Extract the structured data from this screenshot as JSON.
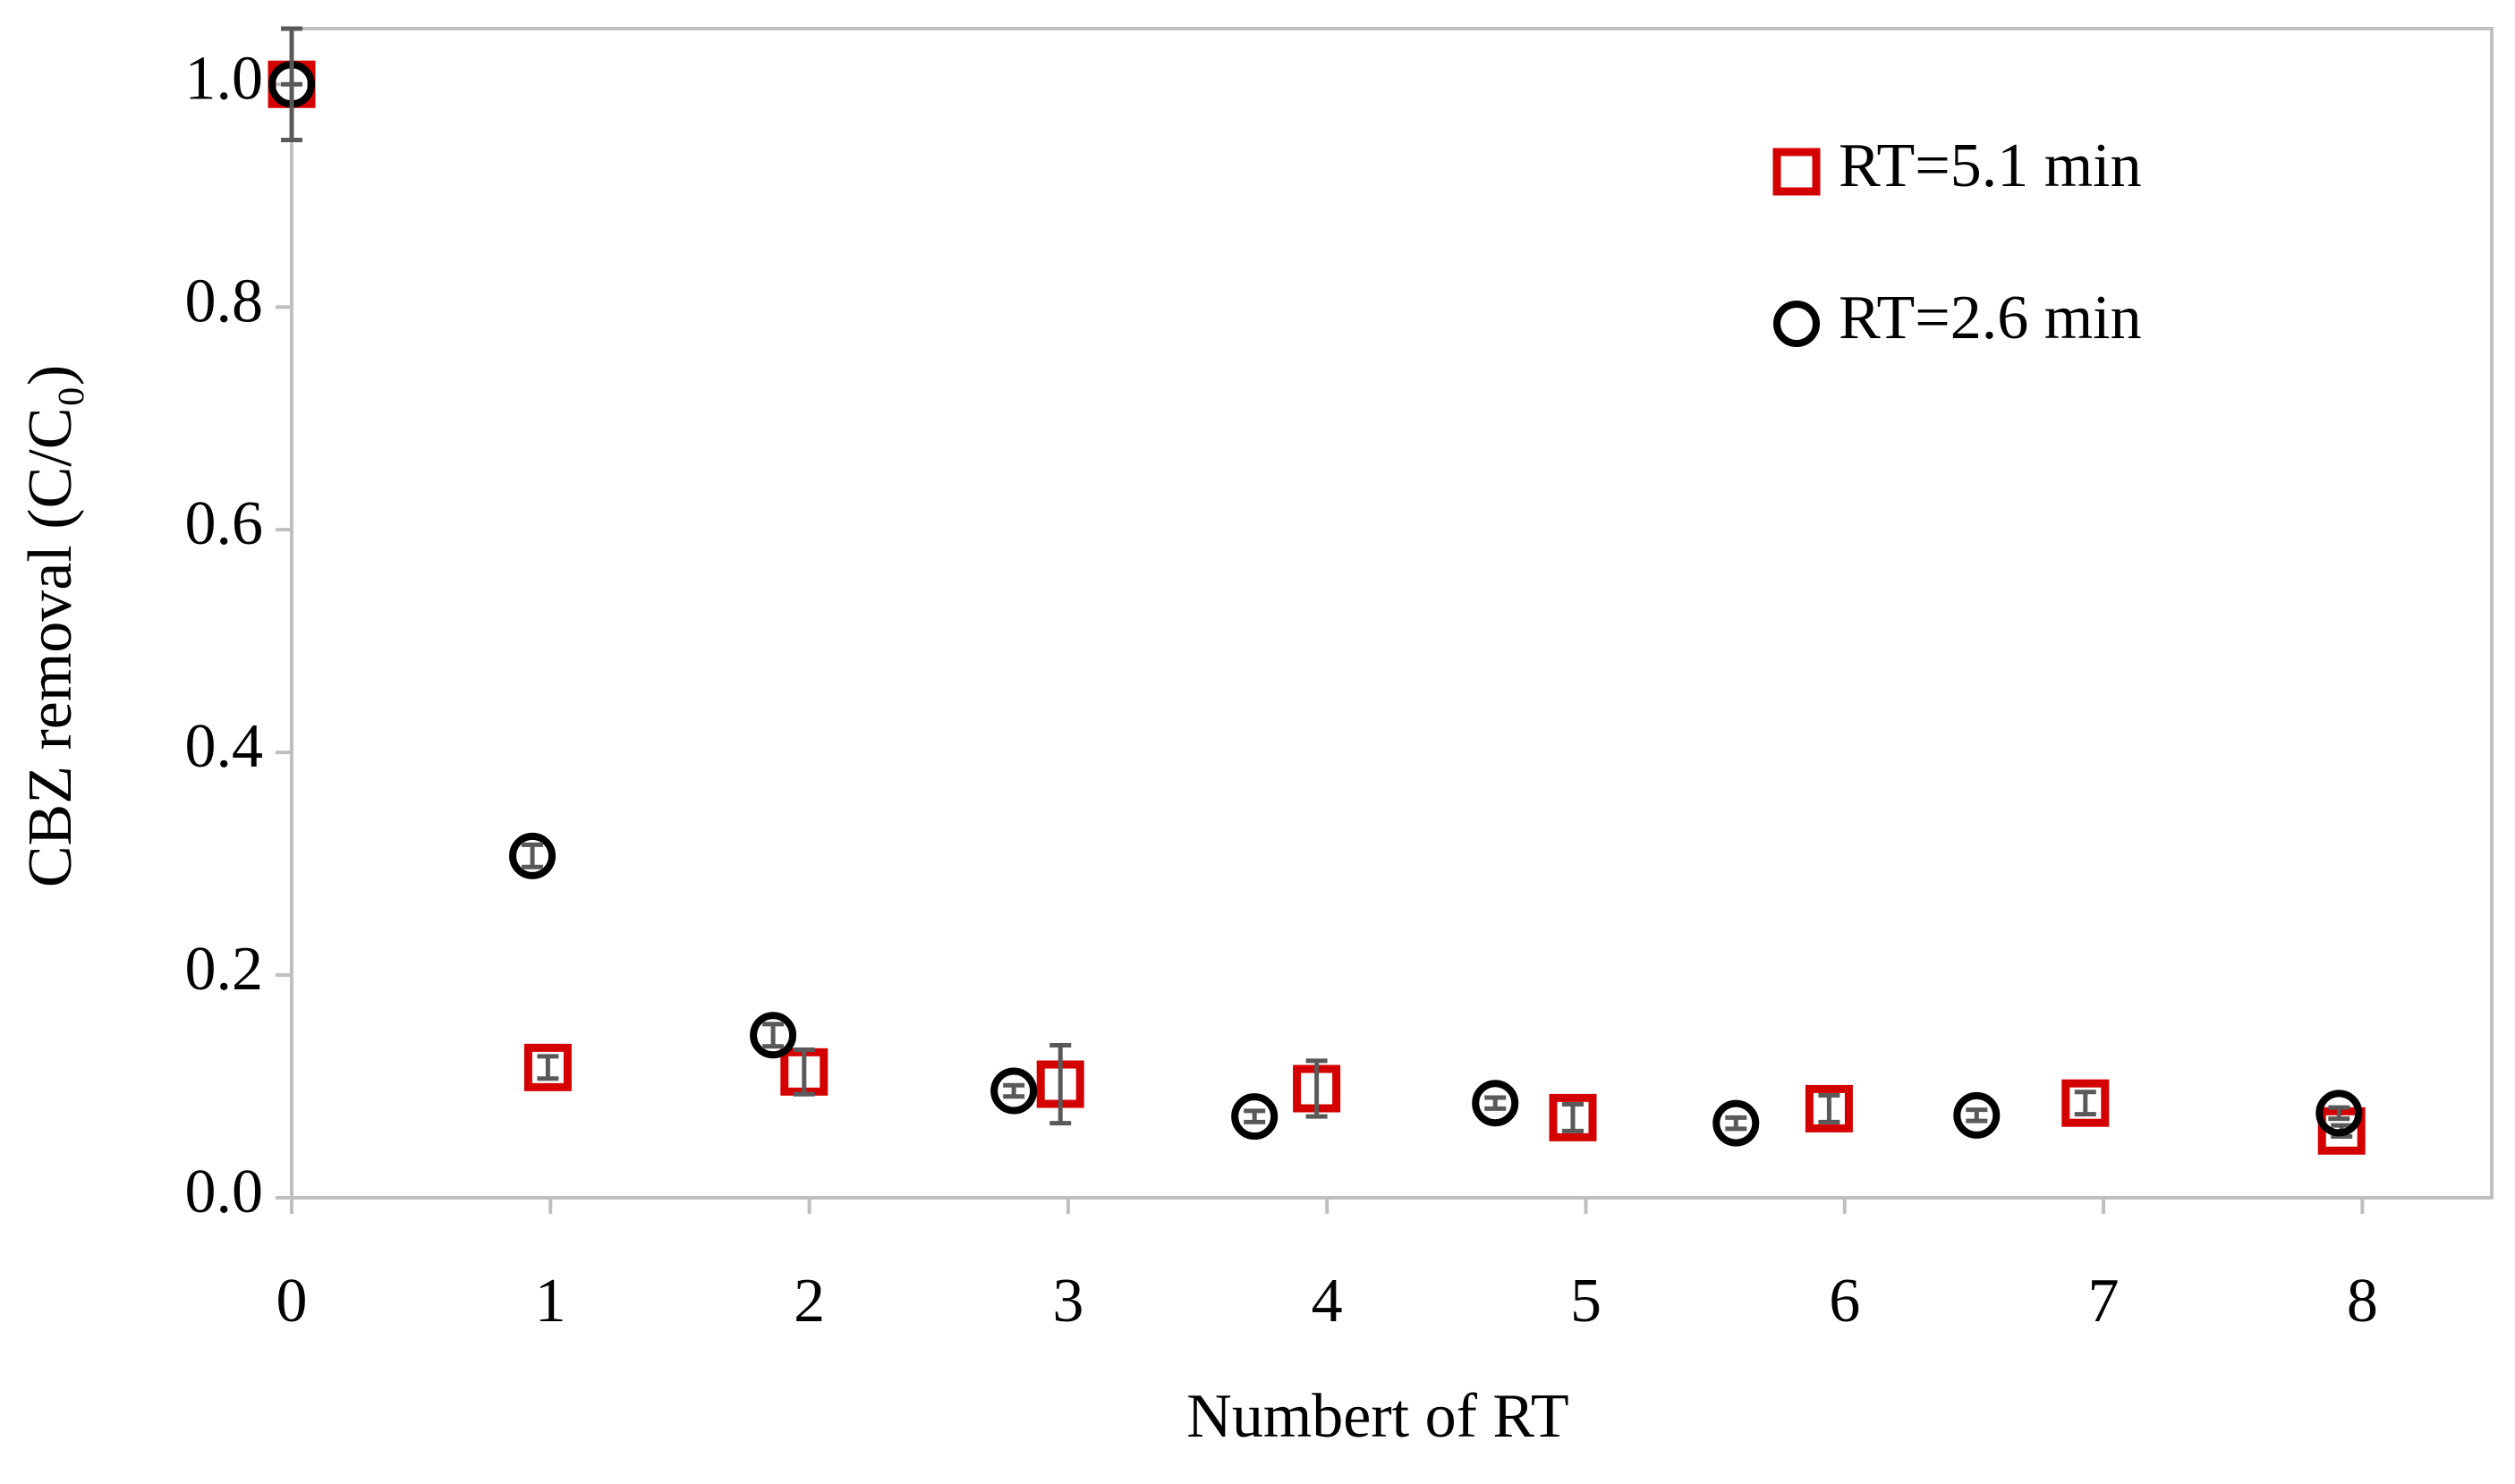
{
  "chart_data": {
    "type": "scatter",
    "xlabel": "Numbert of RT",
    "ylabel": "CBZ removal (C/C₀)",
    "xlim": [
      0,
      8.5
    ],
    "xticks": [
      0,
      1,
      2,
      3,
      4,
      5,
      6,
      7,
      8
    ],
    "ylim": [
      0,
      1.05
    ],
    "yticks": [
      {
        "value": 0,
        "label": "0.0"
      },
      0.2,
      0.4,
      0.6,
      0.8,
      {
        "value": 1,
        "label": "1.0"
      }
    ],
    "grid": false,
    "legend": "upper right",
    "series": [
      {
        "name": "RT=5.1 min",
        "marker": "square",
        "color": "#d40000",
        "x": [
          0,
          0.99,
          1.98,
          2.97,
          3.96,
          4.95,
          5.94,
          6.93,
          7.92
        ],
        "values": [
          1.0,
          0.117,
          0.113,
          0.102,
          0.098,
          0.072,
          0.08,
          0.085,
          0.06
        ],
        "errors": [
          0,
          0.01,
          0.02,
          0.035,
          0.025,
          0.012,
          0.012,
          0.01,
          0.005
        ]
      },
      {
        "name": "RT=2.6 min",
        "marker": "circle",
        "color": "#000000",
        "x": [
          0,
          0.93,
          1.86,
          2.79,
          3.72,
          4.65,
          5.58,
          6.51,
          7.91
        ],
        "values": [
          1.0,
          0.307,
          0.146,
          0.096,
          0.073,
          0.085,
          0.067,
          0.074,
          0.076
        ],
        "errors": [
          0.05,
          0.01,
          0.01,
          0.005,
          0.005,
          0.005,
          0.005,
          0.005,
          0.005
        ]
      }
    ]
  }
}
